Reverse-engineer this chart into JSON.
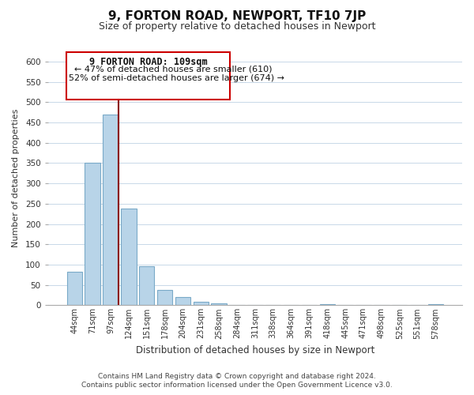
{
  "title": "9, FORTON ROAD, NEWPORT, TF10 7JP",
  "subtitle": "Size of property relative to detached houses in Newport",
  "xlabel": "Distribution of detached houses by size in Newport",
  "ylabel": "Number of detached properties",
  "bar_labels": [
    "44sqm",
    "71sqm",
    "97sqm",
    "124sqm",
    "151sqm",
    "178sqm",
    "204sqm",
    "231sqm",
    "258sqm",
    "284sqm",
    "311sqm",
    "338sqm",
    "364sqm",
    "391sqm",
    "418sqm",
    "445sqm",
    "471sqm",
    "498sqm",
    "525sqm",
    "551sqm",
    "578sqm"
  ],
  "bar_values": [
    82,
    350,
    470,
    238,
    97,
    37,
    20,
    8,
    5,
    0,
    0,
    0,
    0,
    0,
    2,
    0,
    0,
    0,
    0,
    0,
    2
  ],
  "bar_color": "#b8d4e8",
  "bar_edgecolor": "#7aaac8",
  "vline_color": "#8b0000",
  "annotation_title": "9 FORTON ROAD: 109sqm",
  "annotation_line1": "← 47% of detached houses are smaller (610)",
  "annotation_line2": "52% of semi-detached houses are larger (674) →",
  "annotation_box_edge": "#cc0000",
  "ylim": [
    0,
    625
  ],
  "yticks": [
    0,
    50,
    100,
    150,
    200,
    250,
    300,
    350,
    400,
    450,
    500,
    550,
    600
  ],
  "footer1": "Contains HM Land Registry data © Crown copyright and database right 2024.",
  "footer2": "Contains public sector information licensed under the Open Government Licence v3.0.",
  "bg_color": "#ffffff",
  "grid_color": "#c8d8e8"
}
